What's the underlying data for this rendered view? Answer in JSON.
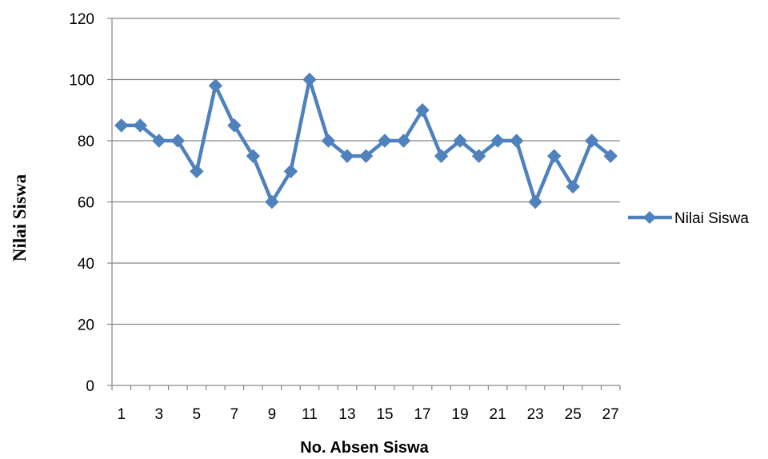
{
  "chart_data": {
    "type": "line",
    "title": "",
    "xlabel": "No. Absen Siswa",
    "ylabel": "Nilai Siswa",
    "ylim": [
      0,
      120
    ],
    "yticks": [
      0,
      20,
      40,
      60,
      80,
      100,
      120
    ],
    "x": [
      1,
      2,
      3,
      4,
      5,
      6,
      7,
      8,
      9,
      10,
      11,
      12,
      13,
      14,
      15,
      16,
      17,
      18,
      19,
      20,
      21,
      22,
      23,
      24,
      25,
      26,
      27
    ],
    "xtick_labels": [
      "1",
      "3",
      "5",
      "7",
      "9",
      "11",
      "13",
      "15",
      "17",
      "19",
      "21",
      "23",
      "25",
      "27"
    ],
    "series": [
      {
        "name": "Nilai Siswa",
        "color": "#4f81bd",
        "marker": "diamond",
        "values": [
          85,
          85,
          80,
          80,
          70,
          98,
          85,
          75,
          60,
          70,
          100,
          80,
          75,
          75,
          80,
          80,
          90,
          75,
          80,
          75,
          80,
          80,
          60,
          75,
          65,
          80,
          75
        ]
      }
    ],
    "grid": true,
    "legend_position": "right"
  }
}
